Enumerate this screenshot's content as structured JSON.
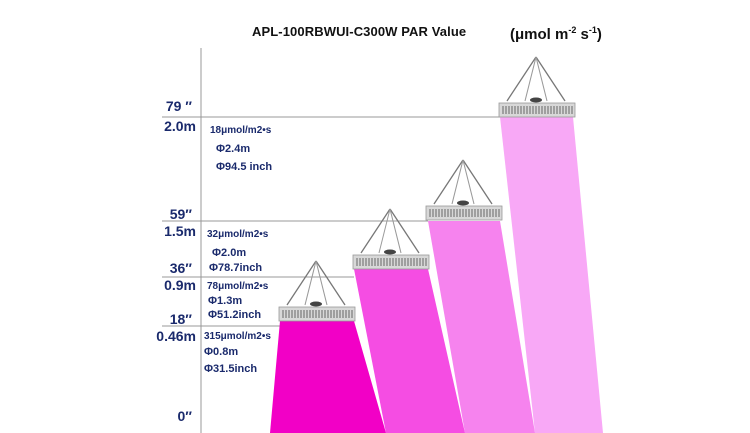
{
  "title": "APL-100RBWUI-C300W  PAR Value",
  "unit": {
    "base": "(μmol m",
    "exp1": "-2",
    "mid": " s",
    "exp2": "-1",
    "end": ")"
  },
  "colors": {
    "level1": "#f200c6",
    "level2": "#f54de3",
    "level3": "#f683ee",
    "level4": "#f8a8f6",
    "fixture": "#d8d8d8",
    "grid": "#999999",
    "text": "#1a2a6c"
  },
  "heights": [
    {
      "inch": "79 ″",
      "meter": "2.0m"
    },
    {
      "inch": "59″",
      "meter": "1.5m"
    },
    {
      "inch": "36″",
      "meter": "0.9m"
    },
    {
      "inch": "18″",
      "meter": "0.46m"
    },
    {
      "inch": "0″",
      "meter": ""
    }
  ],
  "levels": [
    {
      "par": "18μmol/m2•s",
      "diameter_m": "Φ2.4m",
      "diameter_in": "Φ94.5 inch"
    },
    {
      "par": "32μmol/m2•s",
      "diameter_m": "Φ2.0m",
      "diameter_in": "Φ78.7inch"
    },
    {
      "par": "78μmol/m2•s",
      "diameter_m": "Φ1.3m",
      "diameter_in": "Φ51.2inch"
    },
    {
      "par": "315μmol/m2•s",
      "diameter_m": "Φ0.8m",
      "diameter_in": "Φ31.5inch"
    }
  ],
  "icons": {
    "fixture": "led-grow-light-fixture-icon"
  }
}
